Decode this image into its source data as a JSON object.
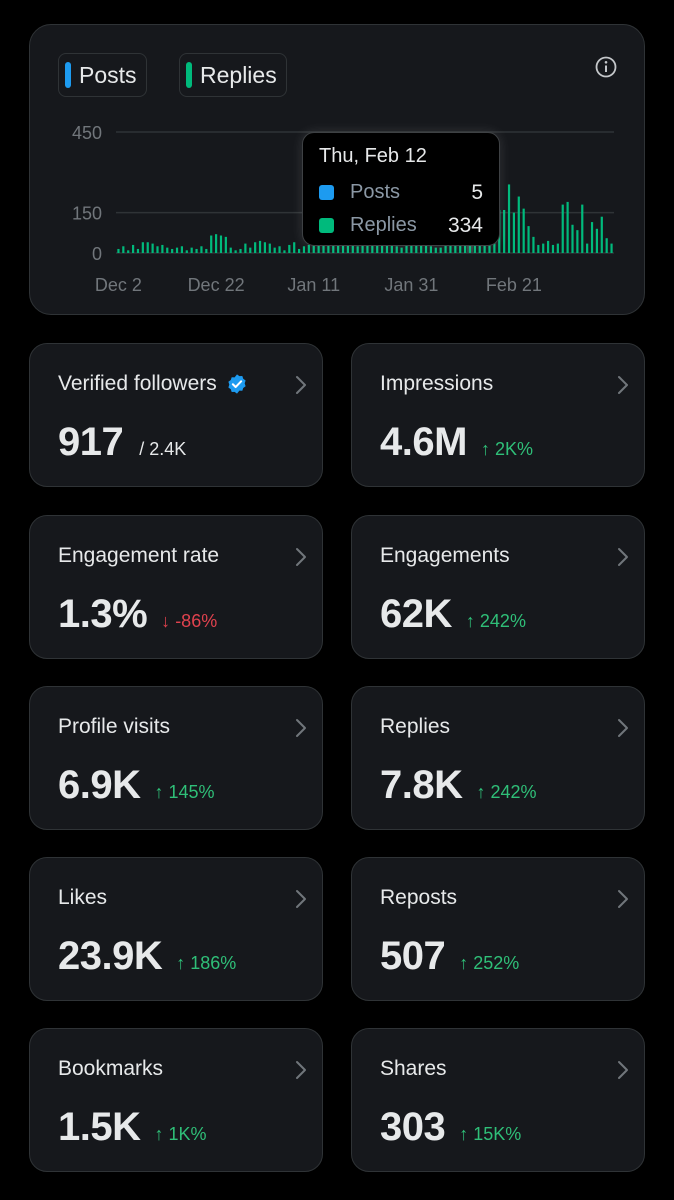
{
  "chart": {
    "legend": [
      {
        "label": "Posts",
        "color": "#1d9bf0"
      },
      {
        "label": "Replies",
        "color": "#00ba7c"
      }
    ],
    "info_icon": "info-icon",
    "tooltip": {
      "date": "Thu, Feb 12",
      "rows": [
        {
          "name": "Posts",
          "value": "5",
          "color": "#1d9bf0"
        },
        {
          "name": "Replies",
          "value": "334",
          "color": "#00ba7c"
        }
      ]
    }
  },
  "chart_data": {
    "type": "bar",
    "title": "",
    "xlabel": "",
    "ylabel": "",
    "ylim": [
      0,
      450
    ],
    "y_ticks": [
      "450",
      "150",
      "0"
    ],
    "y_tick_values": [
      450,
      150,
      0
    ],
    "x_ticks": [
      "Dec 2",
      "Dec 22",
      "Jan 11",
      "Jan 31",
      "Feb 21"
    ],
    "x_tick_days": [
      1,
      21,
      41,
      61,
      82
    ],
    "grid": true,
    "highlighted_day": 73,
    "series": [
      {
        "name": "Replies",
        "color": "#00ba7c",
        "values": [
          15,
          25,
          10,
          30,
          15,
          40,
          40,
          35,
          25,
          30,
          20,
          15,
          20,
          25,
          10,
          20,
          15,
          25,
          15,
          65,
          70,
          65,
          60,
          20,
          10,
          15,
          35,
          20,
          40,
          45,
          40,
          35,
          20,
          25,
          10,
          30,
          40,
          15,
          25,
          30,
          60,
          125,
          110,
          60,
          100,
          140,
          30,
          40,
          35,
          25,
          140,
          80,
          120,
          60,
          150,
          130,
          30,
          25,
          20,
          140,
          150,
          100,
          40,
          30,
          25,
          20,
          20,
          140,
          260,
          230,
          170,
          80,
          300,
          334,
          170,
          330,
          250,
          200,
          160,
          160,
          255,
          150,
          210,
          165,
          100,
          60,
          30,
          35,
          45,
          30,
          35,
          180,
          190,
          105,
          85,
          180,
          35,
          115,
          90,
          135,
          55,
          35
        ]
      }
    ]
  },
  "stats": [
    {
      "label": "Verified followers",
      "value": "917",
      "sub": "/ 2.4K",
      "delta": "",
      "direction": "",
      "verified": true
    },
    {
      "label": "Impressions",
      "value": "4.6M",
      "sub": "",
      "delta": "2K%",
      "direction": "up"
    },
    {
      "label": "Engagement rate",
      "value": "1.3%",
      "sub": "",
      "delta": "-86%",
      "direction": "down"
    },
    {
      "label": "Engagements",
      "value": "62K",
      "sub": "",
      "delta": "242%",
      "direction": "up"
    },
    {
      "label": "Profile visits",
      "value": "6.9K",
      "sub": "",
      "delta": "145%",
      "direction": "up"
    },
    {
      "label": "Replies",
      "value": "7.8K",
      "sub": "",
      "delta": "242%",
      "direction": "up"
    },
    {
      "label": "Likes",
      "value": "23.9K",
      "sub": "",
      "delta": "186%",
      "direction": "up"
    },
    {
      "label": "Reposts",
      "value": "507",
      "sub": "",
      "delta": "252%",
      "direction": "up"
    },
    {
      "label": "Bookmarks",
      "value": "1.5K",
      "sub": "",
      "delta": "1K%",
      "direction": "up"
    },
    {
      "label": "Shares",
      "value": "303",
      "sub": "",
      "delta": "15K%",
      "direction": "up"
    }
  ]
}
